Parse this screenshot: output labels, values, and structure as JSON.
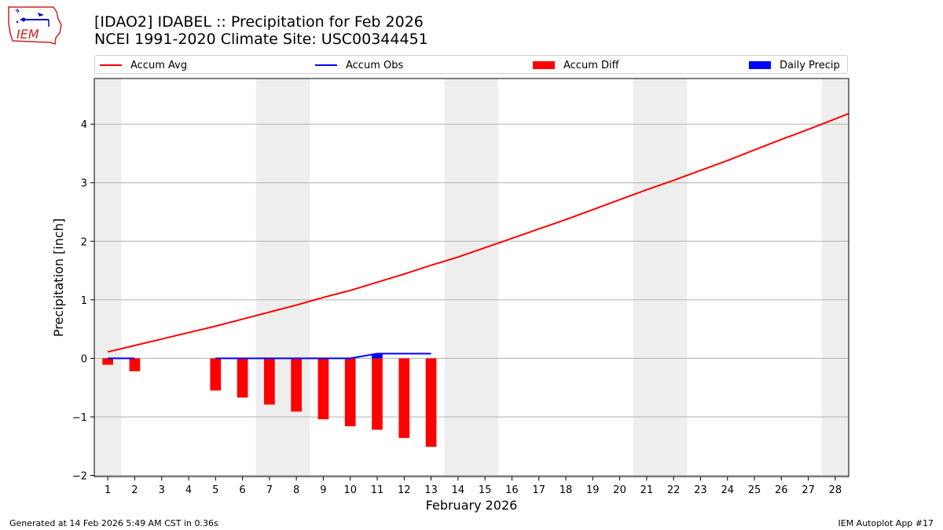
{
  "header": {
    "logo_text": "IEM",
    "title_line1": "[IDAO2] IDABEL :: Precipitation for Feb 2026",
    "title_line2": "NCEI 1991-2020 Climate Site: USC00344451"
  },
  "colors": {
    "avg": "#ff0000",
    "obs": "#0000ff",
    "diff": "#ff0000",
    "daily": "#0000ff",
    "weekend": "#eeeeee",
    "grid": "#b0b0b0"
  },
  "footer": {
    "generated": "Generated at 14 Feb 2026 5:49 AM CST in 0.36s",
    "app": "IEM Autoplot App #17"
  },
  "chart_data": {
    "type": "bar",
    "title": "[IDAO2] IDABEL :: Precipitation for Feb 2026",
    "subtitle": "NCEI 1991-2020 Climate Site: USC00344451",
    "xlabel": "February 2026",
    "ylabel": "Precipitation [inch]",
    "xlim": [
      0.5,
      28.5
    ],
    "ylim": [
      -2.02,
      4.78
    ],
    "yticks": [
      -2,
      -1,
      0,
      1,
      2,
      3,
      4
    ],
    "ytick_labels": [
      "−2",
      "−1",
      "0",
      "1",
      "2",
      "3",
      "4"
    ],
    "xticks": [
      1,
      2,
      3,
      4,
      5,
      6,
      7,
      8,
      9,
      10,
      11,
      12,
      13,
      14,
      15,
      16,
      17,
      18,
      19,
      20,
      21,
      22,
      23,
      24,
      25,
      26,
      27,
      28
    ],
    "grid": "y",
    "legend_position": "top",
    "weekend_spans": [
      [
        0.5,
        1.5
      ],
      [
        6.5,
        8.5
      ],
      [
        13.5,
        15.5
      ],
      [
        20.5,
        22.5
      ],
      [
        27.5,
        28.5
      ]
    ],
    "series": [
      {
        "name": "Accum Avg",
        "kind": "line",
        "color": "#ff0000",
        "x": [
          1,
          2,
          3,
          4,
          5,
          6,
          7,
          8,
          9,
          10,
          11,
          12,
          13,
          14,
          15,
          16,
          17,
          18,
          19,
          20,
          21,
          22,
          23,
          24,
          25,
          26,
          27,
          28,
          28.5
        ],
        "values": [
          0.11,
          0.22,
          0.33,
          0.44,
          0.55,
          0.67,
          0.79,
          0.91,
          1.04,
          1.16,
          1.3,
          1.44,
          1.59,
          1.73,
          1.89,
          2.05,
          2.21,
          2.37,
          2.54,
          2.71,
          2.88,
          3.04,
          3.21,
          3.38,
          3.56,
          3.74,
          3.91,
          4.09,
          4.18
        ]
      },
      {
        "name": "Accum Obs",
        "kind": "line",
        "color": "#0000ff",
        "segments": [
          {
            "x": [
              1,
              2
            ],
            "values": [
              0.0,
              0.0
            ]
          },
          {
            "x": [
              5,
              6,
              7,
              8,
              9,
              10,
              11,
              12,
              13
            ],
            "values": [
              0.0,
              0.0,
              0.0,
              0.0,
              0.0,
              0.0,
              0.08,
              0.08,
              0.08
            ]
          }
        ]
      },
      {
        "name": "Accum Diff",
        "kind": "bar",
        "color": "#ff0000",
        "x": [
          1,
          2,
          5,
          6,
          7,
          8,
          9,
          10,
          11,
          12,
          13
        ],
        "values": [
          -0.11,
          -0.22,
          -0.55,
          -0.67,
          -0.79,
          -0.91,
          -1.04,
          -1.16,
          -1.22,
          -1.36,
          -1.51
        ]
      },
      {
        "name": "Daily Precip",
        "kind": "bar",
        "color": "#0000ff",
        "x": [
          11
        ],
        "values": [
          0.08
        ]
      }
    ]
  }
}
